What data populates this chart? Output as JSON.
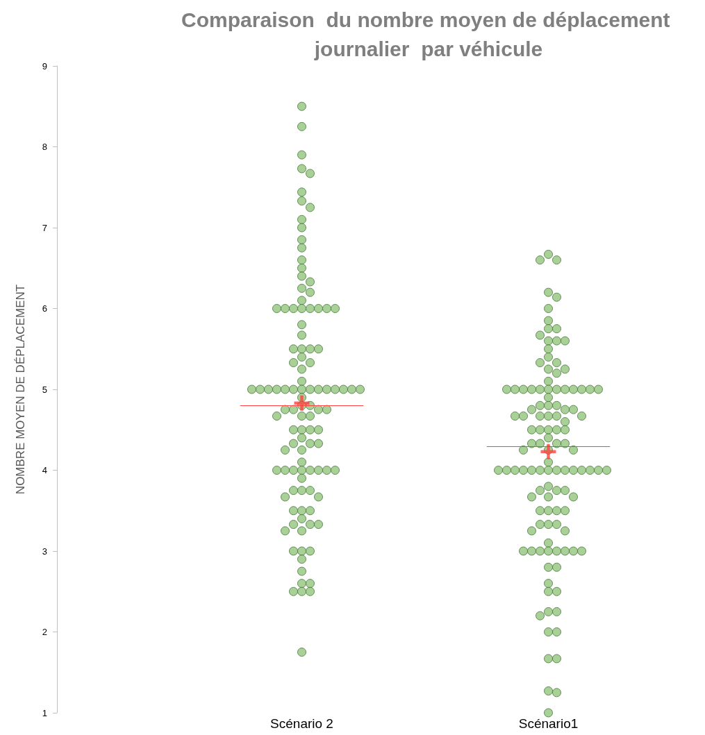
{
  "chart_data": {
    "type": "scatter",
    "title": "Comparaison  du nombre moyen de déplacement journalier  par véhicule",
    "ylabel": "NOMBRE MOYEN DE DÉPLACEMENT",
    "categories": [
      "Scénario 2",
      "Scénario1"
    ],
    "ylim": [
      1,
      9
    ],
    "yticks": [
      1,
      2,
      3,
      4,
      5,
      6,
      7,
      8,
      9
    ],
    "grid": false,
    "ref_lines": [
      {
        "axis": "y",
        "value": 4.8,
        "color": "#ff4040"
      },
      {
        "axis": "y",
        "value": 4.29,
        "color": "#ff4040"
      }
    ],
    "series": [
      {
        "type": "scatter",
        "marker": "circle",
        "color": "#93c47d",
        "x": [
          "Scénario 2",
          "Scénario 2",
          "Scénario 2",
          "Scénario 2",
          "Scénario 2",
          "Scénario 2",
          "Scénario 2",
          "Scénario 2",
          "Scénario 2",
          "Scénario 2",
          "Scénario 2",
          "Scénario 2",
          "Scénario 2",
          "Scénario 2",
          "Scénario 2",
          "Scénario 2",
          "Scénario 2",
          "Scénario 2",
          "Scénario 2",
          "Scénario 2",
          "Scénario 2",
          "Scénario 2",
          "Scénario 2",
          "Scénario 2",
          "Scénario 2",
          "Scénario 2",
          "Scénario 2",
          "Scénario 2",
          "Scénario 2",
          "Scénario 2",
          "Scénario 2",
          "Scénario 2",
          "Scénario 2",
          "Scénario 2",
          "Scénario 2",
          "Scénario 2",
          "Scénario 2",
          "Scénario 2",
          "Scénario 2",
          "Scénario 2",
          "Scénario 2",
          "Scénario 2",
          "Scénario 2",
          "Scénario 2",
          "Scénario 2",
          "Scénario 2",
          "Scénario 2",
          "Scénario 2",
          "Scénario 2",
          "Scénario 2",
          "Scénario 2",
          "Scénario 2",
          "Scénario 2",
          "Scénario 2",
          "Scénario 2",
          "Scénario 2",
          "Scénario 2",
          "Scénario 2",
          "Scénario 2",
          "Scénario 2",
          "Scénario 2",
          "Scénario 2",
          "Scénario 2",
          "Scénario 2",
          "Scénario 2",
          "Scénario 2",
          "Scénario 2",
          "Scénario 2",
          "Scénario 2",
          "Scénario 2",
          "Scénario 2",
          "Scénario 2",
          "Scénario 2",
          "Scénario 2",
          "Scénario 2",
          "Scénario 2",
          "Scénario 2",
          "Scénario 2",
          "Scénario 2",
          "Scénario 2",
          "Scénario 2",
          "Scénario 2",
          "Scénario 2",
          "Scénario 2",
          "Scénario 2",
          "Scénario 2",
          "Scénario 2",
          "Scénario 2",
          "Scénario 2",
          "Scénario 2",
          "Scénario 2",
          "Scénario 2",
          "Scénario 2",
          "Scénario 2",
          "Scénario 2",
          "Scénario 2",
          "Scénario 2",
          "Scénario 2",
          "Scénario 2",
          "Scénario 2",
          "Scénario 2",
          "Scénario 2",
          "Scénario 2",
          "Scénario 2",
          "Scénario 2",
          "Scénario 2",
          "Scénario 2"
        ],
        "values": [
          8.5,
          8.25,
          7.9,
          7.73,
          7.67,
          7.44,
          7.33,
          7.25,
          7.1,
          7.0,
          6.85,
          6.75,
          6.6,
          6.5,
          6.4,
          6.33,
          6.25,
          6.2,
          6.1,
          6,
          6,
          6,
          6,
          6,
          6,
          6,
          6,
          5.8,
          5.67,
          5.5,
          5.5,
          5.5,
          5.5,
          5.4,
          5.33,
          5.33,
          5.25,
          5.1,
          5,
          5,
          5,
          5,
          5,
          5,
          5,
          5,
          5,
          5,
          5,
          5,
          5,
          5,
          4.9,
          4.8,
          4.8,
          4.75,
          4.75,
          4.75,
          4.75,
          4.67,
          4.67,
          4.67,
          4.5,
          4.5,
          4.5,
          4.5,
          4.4,
          4.33,
          4.33,
          4.33,
          4.25,
          4.25,
          4.1,
          4,
          4,
          4,
          4,
          4,
          4,
          4,
          4,
          3.9,
          3.75,
          3.75,
          3.75,
          3.67,
          3.67,
          3.5,
          3.5,
          3.5,
          3.4,
          3.33,
          3.33,
          3.33,
          3.25,
          3.25,
          3,
          3,
          3,
          2.9,
          2.75,
          2.6,
          2.6,
          2.5,
          2.5,
          2.5,
          1.75
        ]
      },
      {
        "type": "scatter",
        "marker": "circle",
        "color": "#93c47d",
        "x": [
          "Scénario1",
          "Scénario1",
          "Scénario1",
          "Scénario1",
          "Scénario1",
          "Scénario1",
          "Scénario1",
          "Scénario1",
          "Scénario1",
          "Scénario1",
          "Scénario1",
          "Scénario1",
          "Scénario1",
          "Scénario1",
          "Scénario1",
          "Scénario1",
          "Scénario1",
          "Scénario1",
          "Scénario1",
          "Scénario1",
          "Scénario1",
          "Scénario1",
          "Scénario1",
          "Scénario1",
          "Scénario1",
          "Scénario1",
          "Scénario1",
          "Scénario1",
          "Scénario1",
          "Scénario1",
          "Scénario1",
          "Scénario1",
          "Scénario1",
          "Scénario1",
          "Scénario1",
          "Scénario1",
          "Scénario1",
          "Scénario1",
          "Scénario1",
          "Scénario1",
          "Scénario1",
          "Scénario1",
          "Scénario1",
          "Scénario1",
          "Scénario1",
          "Scénario1",
          "Scénario1",
          "Scénario1",
          "Scénario1",
          "Scénario1",
          "Scénario1",
          "Scénario1",
          "Scénario1",
          "Scénario1",
          "Scénario1",
          "Scénario1",
          "Scénario1",
          "Scénario1",
          "Scénario1",
          "Scénario1",
          "Scénario1",
          "Scénario1",
          "Scénario1",
          "Scénario1",
          "Scénario1",
          "Scénario1",
          "Scénario1",
          "Scénario1",
          "Scénario1",
          "Scénario1",
          "Scénario1",
          "Scénario1",
          "Scénario1",
          "Scénario1",
          "Scénario1",
          "Scénario1",
          "Scénario1",
          "Scénario1",
          "Scénario1",
          "Scénario1",
          "Scénario1",
          "Scénario1",
          "Scénario1",
          "Scénario1",
          "Scénario1",
          "Scénario1",
          "Scénario1",
          "Scénario1",
          "Scénario1",
          "Scénario1",
          "Scénario1",
          "Scénario1",
          "Scénario1",
          "Scénario1",
          "Scénario1",
          "Scénario1",
          "Scénario1",
          "Scénario1",
          "Scénario1",
          "Scénario1",
          "Scénario1",
          "Scénario1",
          "Scénario1",
          "Scénario1",
          "Scénario1",
          "Scénario1",
          "Scénario1",
          "Scénario1",
          "Scénario1",
          "Scénario1",
          "Scénario1",
          "Scénario1",
          "Scénario1",
          "Scénario1",
          "Scénario1"
        ],
        "values": [
          6.67,
          6.6,
          6.6,
          6.2,
          6.14,
          6.0,
          5.85,
          5.75,
          5.75,
          5.67,
          5.6,
          5.6,
          5.6,
          5.5,
          5.4,
          5.33,
          5.33,
          5.25,
          5.25,
          5.2,
          5.1,
          5,
          5,
          5,
          5,
          5,
          5,
          5,
          5,
          5,
          5,
          5,
          5,
          4.9,
          4.8,
          4.8,
          4.8,
          4.75,
          4.75,
          4.75,
          4.67,
          4.67,
          4.67,
          4.67,
          4.67,
          4.67,
          4.6,
          4.5,
          4.5,
          4.5,
          4.5,
          4.5,
          4.4,
          4.33,
          4.33,
          4.33,
          4.33,
          4.25,
          4.25,
          4.25,
          4.1,
          4,
          4,
          4,
          4,
          4,
          4,
          4,
          4,
          4,
          4,
          4,
          4,
          4,
          4,
          3.8,
          3.75,
          3.75,
          3.75,
          3.67,
          3.67,
          3.67,
          3.5,
          3.5,
          3.5,
          3.5,
          3.33,
          3.33,
          3.33,
          3.25,
          3.25,
          3.1,
          3,
          3,
          3,
          3,
          3,
          3,
          3,
          3,
          2.8,
          2.8,
          2.6,
          2.5,
          2.5,
          2.25,
          2.25,
          2.2,
          2.0,
          2.0,
          1.67,
          1.67,
          1.27,
          1.25,
          1.0
        ]
      },
      {
        "type": "scatter",
        "marker": "cross",
        "color": "#ff4040",
        "x": [
          "Scénario 2",
          "Scénario1"
        ],
        "values": [
          4.83,
          4.23
        ]
      }
    ]
  }
}
